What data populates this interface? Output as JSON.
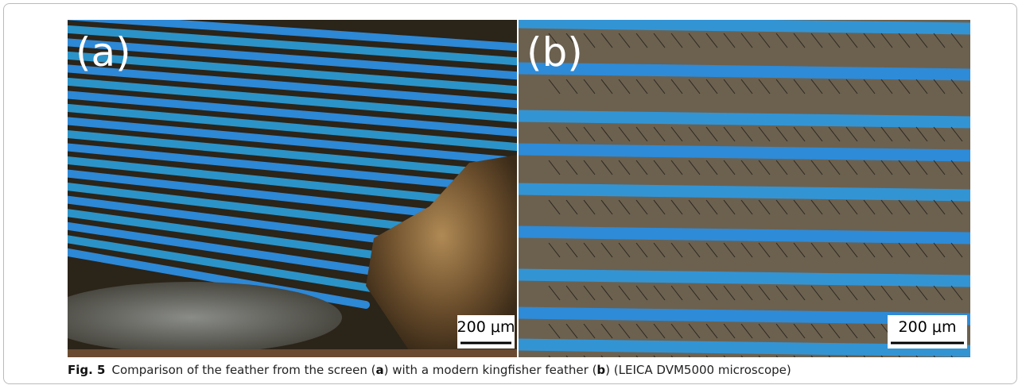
{
  "figure": {
    "panels": [
      {
        "label": "(a)",
        "scale_bar": "200 μm"
      },
      {
        "label": "(b)",
        "scale_bar": "200 μm"
      }
    ],
    "caption": {
      "label": "Fig. 5",
      "parts": [
        "Comparison of the feather from the screen (",
        "a",
        ") with a modern kingfisher feather (",
        "b",
        ") (LEICA DVM5000 microscope)"
      ]
    }
  }
}
